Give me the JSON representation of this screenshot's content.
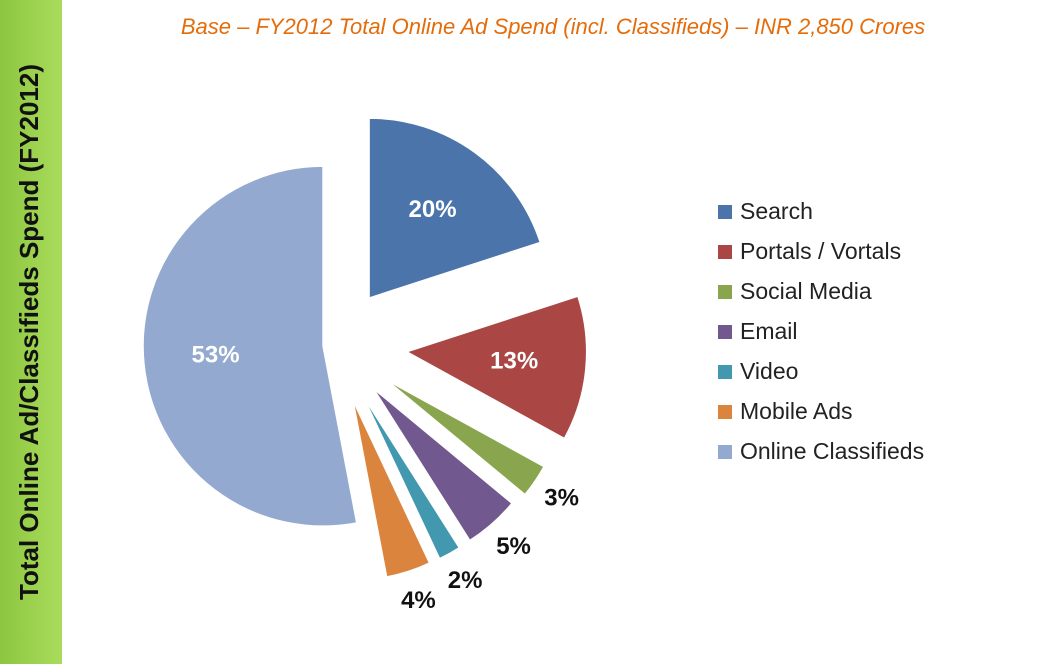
{
  "chart_data": {
    "type": "pie",
    "title": "Base – FY2012 Total Online Ad Spend (incl. Classifieds) – INR 2,850 Crores",
    "side_label": "Total Online Ad/Classifieds  Spend (FY2012)",
    "categories": [
      "Search",
      "Portals / Vortals",
      "Social Media",
      "Email",
      "Video",
      "Mobile Ads",
      "Online Classifieds"
    ],
    "values": [
      20,
      13,
      3,
      5,
      2,
      4,
      53
    ],
    "value_labels": [
      "20%",
      "13%",
      "3%",
      "5%",
      "2%",
      "4%",
      "53%"
    ],
    "colors": [
      "#4a74aa",
      "#aa4643",
      "#89a54e",
      "#71588f",
      "#4198af",
      "#db843d",
      "#93a9cf"
    ],
    "legend": "right"
  }
}
